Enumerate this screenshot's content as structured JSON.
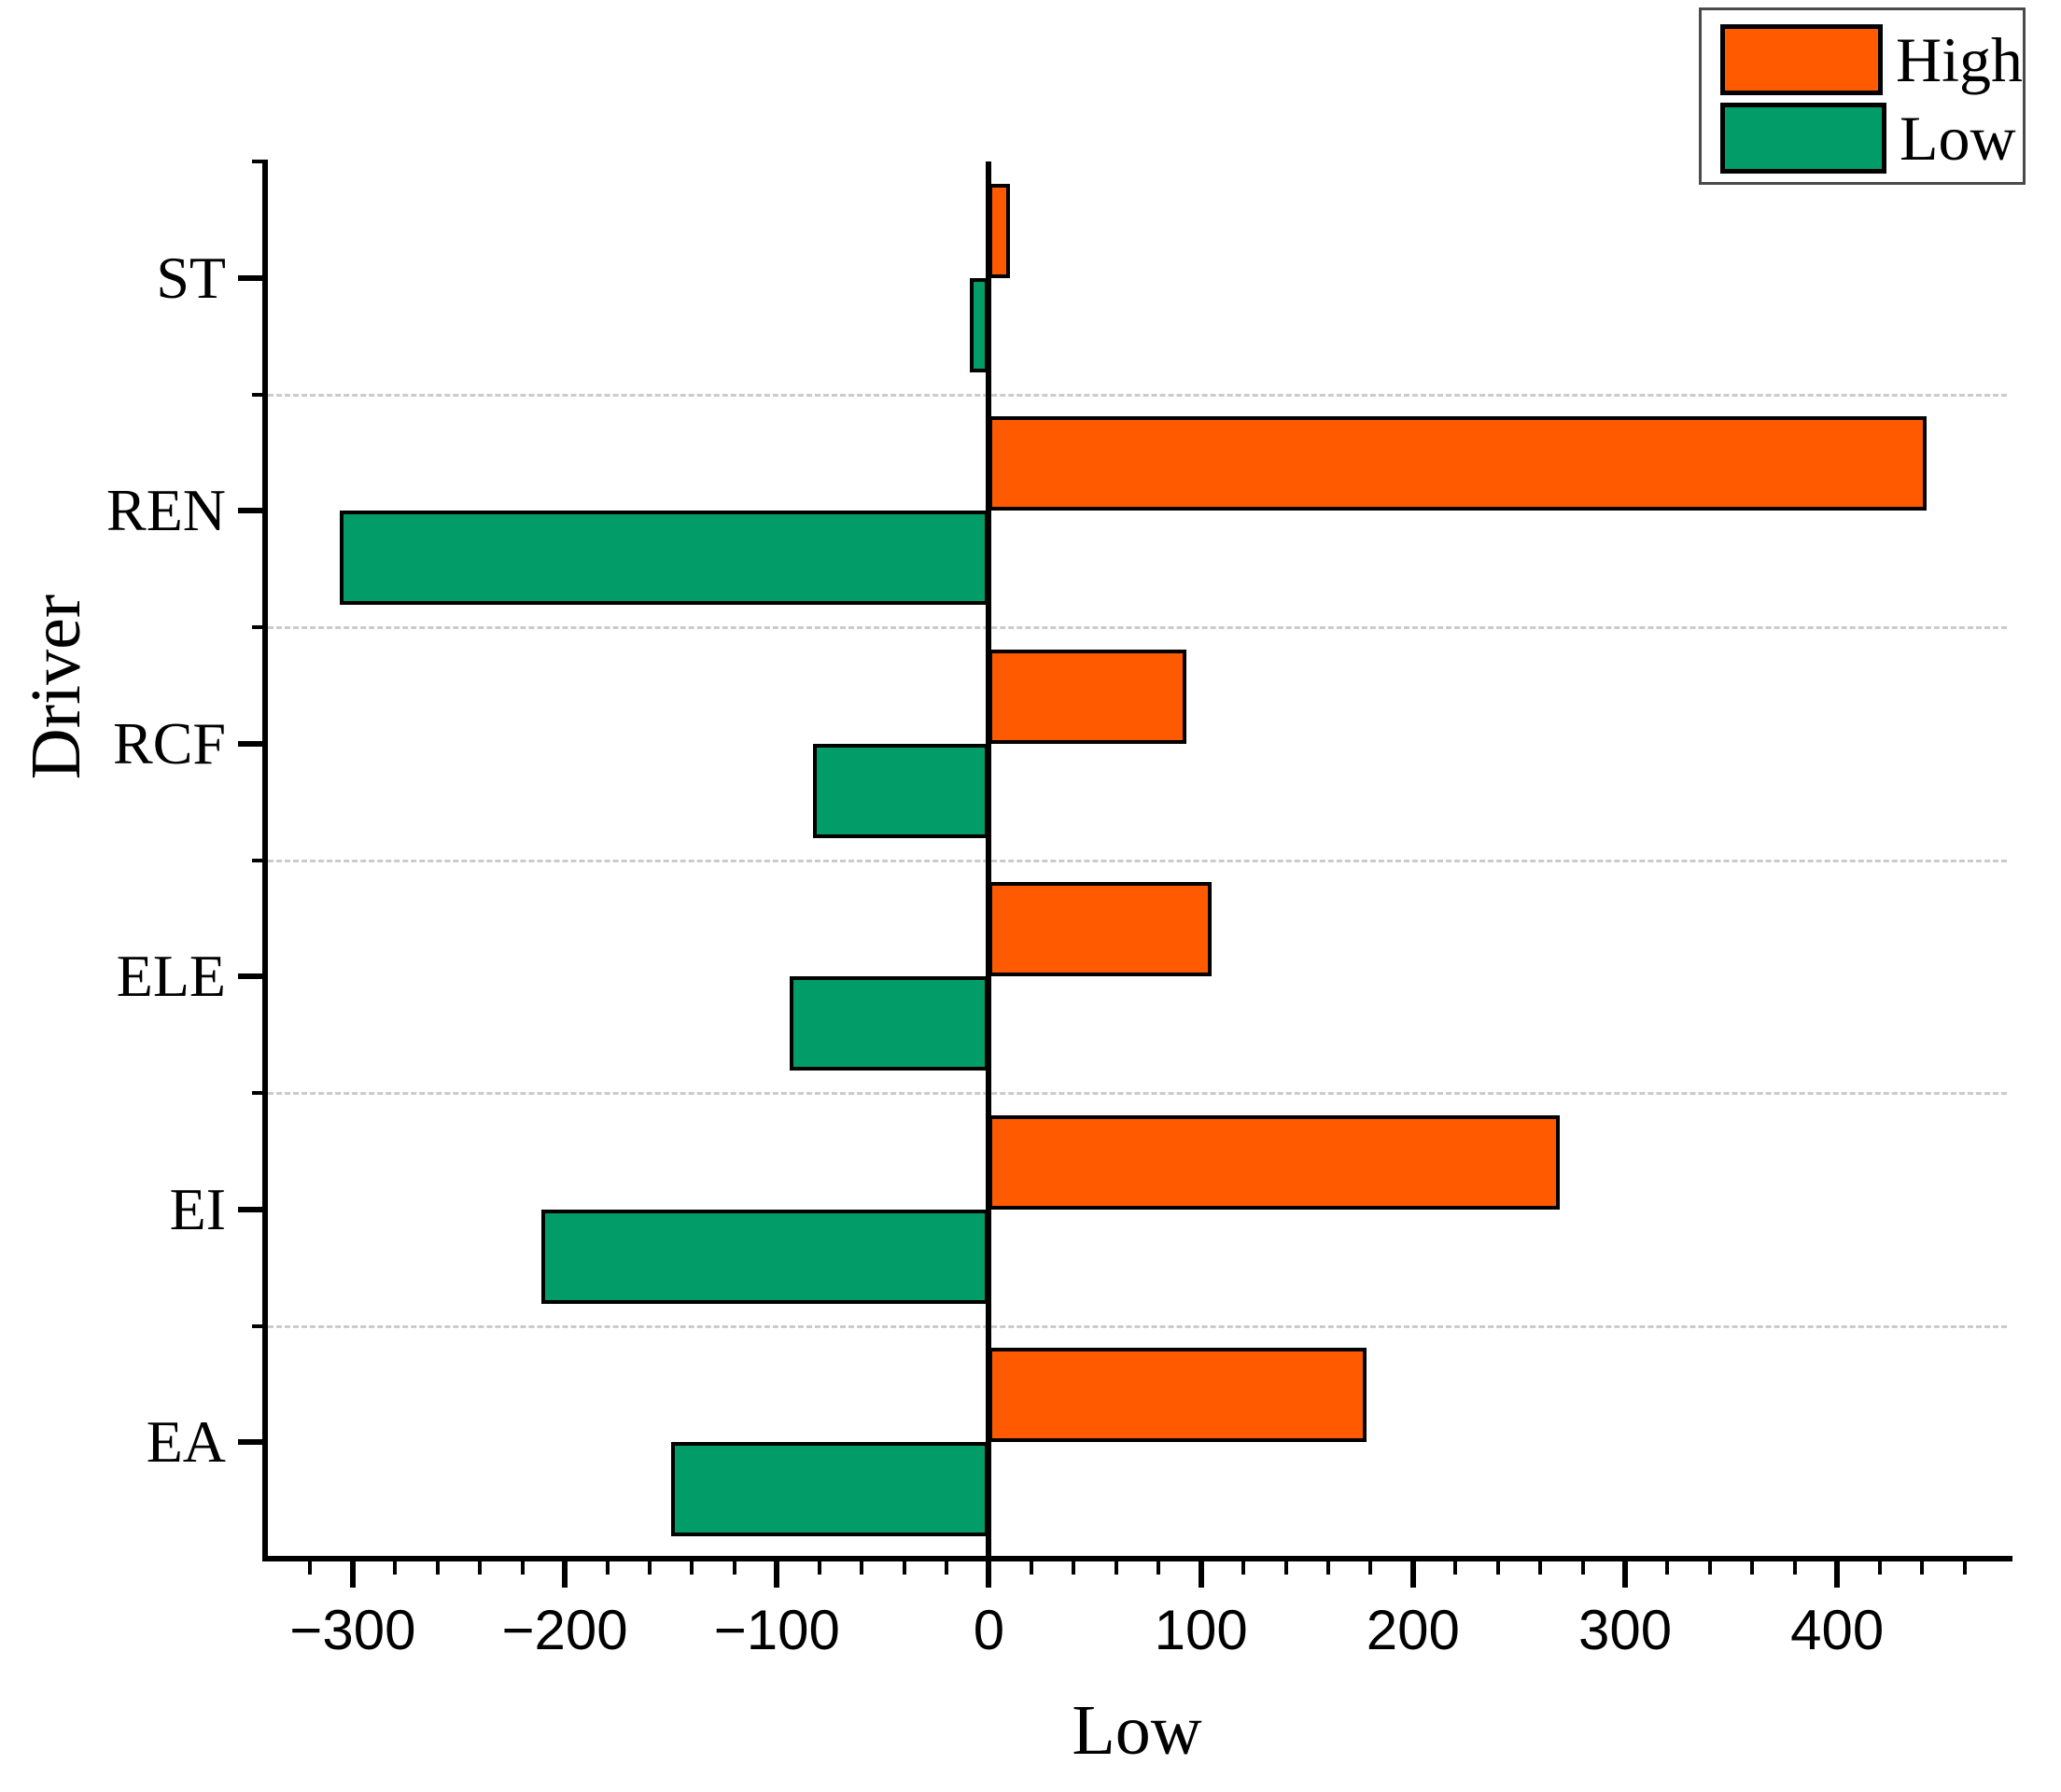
{
  "chart_data": {
    "type": "bar",
    "orientation": "horizontal",
    "title": "",
    "xlabel": "Low",
    "ylabel": "Driver",
    "categories": [
      "ST",
      "REN",
      "RCF",
      "ELE",
      "EI",
      "EA"
    ],
    "series": [
      {
        "name": "High",
        "color": "#FF5A00",
        "values": [
          10,
          442,
          93,
          105,
          269,
          178
        ]
      },
      {
        "name": "Low",
        "color": "#029C69",
        "values": [
          -9,
          -306,
          -83,
          -94,
          -211,
          -150
        ]
      }
    ],
    "xlim": [
      -340,
      480
    ],
    "x_major_ticks": [
      -300,
      -200,
      -100,
      0,
      100,
      200,
      300,
      400
    ],
    "x_minor_step": 20,
    "grid": "horizontal-dashed",
    "gridline_color": "#cbcbcb",
    "axis_color": "#000000",
    "bar_border_color": "#000000",
    "legend_position": "top-right"
  }
}
